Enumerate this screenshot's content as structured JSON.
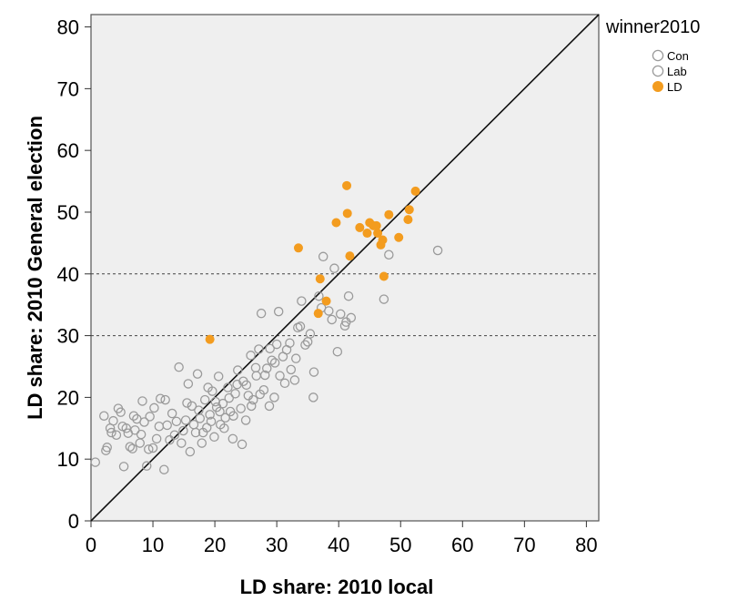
{
  "chart_data": {
    "type": "scatter",
    "xlabel": "LD share: 2010 local",
    "ylabel": "LD share: 2010 General election",
    "xlim": [
      0,
      82
    ],
    "ylim": [
      0,
      82
    ],
    "xticks": [
      0,
      10,
      20,
      30,
      40,
      50,
      60,
      70,
      80
    ],
    "yticks": [
      0,
      10,
      20,
      30,
      40,
      50,
      60,
      70,
      80
    ],
    "reference_lines": {
      "diagonal": "y = x",
      "horizontal": [
        30,
        40
      ]
    },
    "grid": false,
    "legend": {
      "title": "winner2010",
      "placement": "right-outside",
      "entries": [
        {
          "label": "Con",
          "marker": "open-circle",
          "color": "#9a9a9a"
        },
        {
          "label": "Lab",
          "marker": "open-circle",
          "color": "#9a9a9a"
        },
        {
          "label": "LD",
          "marker": "filled-circle",
          "color": "#f39c1f"
        }
      ]
    },
    "series": [
      {
        "name": "LD",
        "values": [
          [
            19.2,
            29.4
          ],
          [
            33.5,
            44.2
          ],
          [
            36.7,
            33.6
          ],
          [
            37.0,
            39.2
          ],
          [
            38.0,
            35.6
          ],
          [
            39.6,
            48.3
          ],
          [
            41.3,
            54.3
          ],
          [
            41.4,
            49.8
          ],
          [
            41.8,
            42.9
          ],
          [
            43.4,
            47.5
          ],
          [
            44.6,
            46.6
          ],
          [
            45.0,
            48.3
          ],
          [
            45.6,
            47.8
          ],
          [
            46.1,
            47.8
          ],
          [
            46.3,
            46.6
          ],
          [
            46.8,
            44.7
          ],
          [
            47.1,
            45.5
          ],
          [
            47.3,
            39.6
          ],
          [
            48.1,
            49.6
          ],
          [
            49.7,
            45.9
          ],
          [
            51.2,
            48.8
          ],
          [
            51.4,
            50.4
          ],
          [
            52.4,
            53.4
          ]
        ]
      },
      {
        "name": "Con",
        "values": [
          [
            0.7,
            9.5
          ],
          [
            2.1,
            17.0
          ],
          [
            2.6,
            11.9
          ],
          [
            3.1,
            15.0
          ],
          [
            3.6,
            16.2
          ],
          [
            4.1,
            13.9
          ],
          [
            4.4,
            18.2
          ],
          [
            5.1,
            15.3
          ],
          [
            5.3,
            8.8
          ],
          [
            6.0,
            14.2
          ],
          [
            6.3,
            12.0
          ],
          [
            6.9,
            17.0
          ],
          [
            7.1,
            14.7
          ],
          [
            7.9,
            12.6
          ],
          [
            8.3,
            19.4
          ],
          [
            8.6,
            16.0
          ],
          [
            9.0,
            8.9
          ],
          [
            9.3,
            11.6
          ],
          [
            10.2,
            18.3
          ],
          [
            10.6,
            13.3
          ],
          [
            11.2,
            19.8
          ],
          [
            11.8,
            8.3
          ],
          [
            12.3,
            15.5
          ],
          [
            13.1,
            17.4
          ],
          [
            13.5,
            13.9
          ],
          [
            14.2,
            24.9
          ],
          [
            14.6,
            12.6
          ],
          [
            15.3,
            16.3
          ],
          [
            15.7,
            22.2
          ],
          [
            16.0,
            11.2
          ],
          [
            16.3,
            18.6
          ],
          [
            16.9,
            14.3
          ],
          [
            17.2,
            23.8
          ],
          [
            17.6,
            16.6
          ],
          [
            17.9,
            12.6
          ],
          [
            18.4,
            19.6
          ],
          [
            18.7,
            15.1
          ],
          [
            19.2,
            17.2
          ],
          [
            19.6,
            21.0
          ],
          [
            19.9,
            13.6
          ],
          [
            20.3,
            18.4
          ],
          [
            20.6,
            23.4
          ],
          [
            20.9,
            15.6
          ],
          [
            21.3,
            19.0
          ],
          [
            21.7,
            16.7
          ],
          [
            22.1,
            21.6
          ],
          [
            22.5,
            17.7
          ],
          [
            22.9,
            13.3
          ],
          [
            23.3,
            20.6
          ],
          [
            23.7,
            24.4
          ],
          [
            24.2,
            18.2
          ],
          [
            24.6,
            22.6
          ],
          [
            25.0,
            16.3
          ],
          [
            25.4,
            20.3
          ],
          [
            25.8,
            26.8
          ],
          [
            26.2,
            19.6
          ],
          [
            26.7,
            23.5
          ],
          [
            27.1,
            27.8
          ],
          [
            27.5,
            33.6
          ],
          [
            27.9,
            21.2
          ],
          [
            28.4,
            24.7
          ],
          [
            28.8,
            18.6
          ],
          [
            29.2,
            26.0
          ],
          [
            29.6,
            20.0
          ],
          [
            30.0,
            28.6
          ],
          [
            30.5,
            23.5
          ],
          [
            31.0,
            26.6
          ],
          [
            31.6,
            27.7
          ],
          [
            32.3,
            24.5
          ],
          [
            32.9,
            22.8
          ],
          [
            33.4,
            31.3
          ],
          [
            34.0,
            35.6
          ],
          [
            34.6,
            28.5
          ],
          [
            35.4,
            30.3
          ],
          [
            36.0,
            24.1
          ],
          [
            36.8,
            36.4
          ],
          [
            37.5,
            42.8
          ],
          [
            38.4,
            34.0
          ],
          [
            39.3,
            40.9
          ],
          [
            40.3,
            33.5
          ],
          [
            41.2,
            32.2
          ],
          [
            42.0,
            32.9
          ],
          [
            47.3,
            35.9
          ],
          [
            48.1,
            43.1
          ],
          [
            56.0,
            43.8
          ]
        ]
      },
      {
        "name": "Lab",
        "values": [
          [
            2.4,
            11.4
          ],
          [
            3.3,
            14.3
          ],
          [
            4.8,
            17.6
          ],
          [
            5.7,
            15.0
          ],
          [
            6.7,
            11.7
          ],
          [
            7.4,
            16.5
          ],
          [
            8.1,
            14.0
          ],
          [
            9.5,
            16.9
          ],
          [
            10.0,
            11.8
          ],
          [
            11.0,
            15.3
          ],
          [
            12.0,
            19.6
          ],
          [
            12.7,
            13.1
          ],
          [
            13.8,
            16.1
          ],
          [
            14.9,
            14.6
          ],
          [
            15.5,
            19.1
          ],
          [
            16.6,
            15.6
          ],
          [
            17.4,
            17.9
          ],
          [
            18.1,
            14.3
          ],
          [
            18.9,
            21.6
          ],
          [
            19.4,
            16.1
          ],
          [
            20.1,
            19.3
          ],
          [
            20.8,
            17.7
          ],
          [
            21.5,
            15.0
          ],
          [
            22.3,
            19.9
          ],
          [
            23.0,
            17.0
          ],
          [
            23.6,
            22.1
          ],
          [
            24.4,
            12.4
          ],
          [
            25.1,
            22.0
          ],
          [
            25.9,
            18.6
          ],
          [
            26.6,
            24.8
          ],
          [
            27.3,
            20.5
          ],
          [
            28.1,
            23.6
          ],
          [
            28.9,
            27.9
          ],
          [
            29.7,
            25.6
          ],
          [
            30.3,
            33.9
          ],
          [
            31.3,
            22.3
          ],
          [
            32.1,
            28.8
          ],
          [
            33.1,
            26.3
          ],
          [
            33.8,
            31.5
          ],
          [
            35.0,
            29.0
          ],
          [
            35.9,
            20.0
          ],
          [
            37.2,
            34.5
          ],
          [
            38.9,
            32.6
          ],
          [
            39.8,
            27.4
          ],
          [
            41.0,
            31.6
          ],
          [
            41.6,
            36.4
          ]
        ]
      }
    ]
  }
}
